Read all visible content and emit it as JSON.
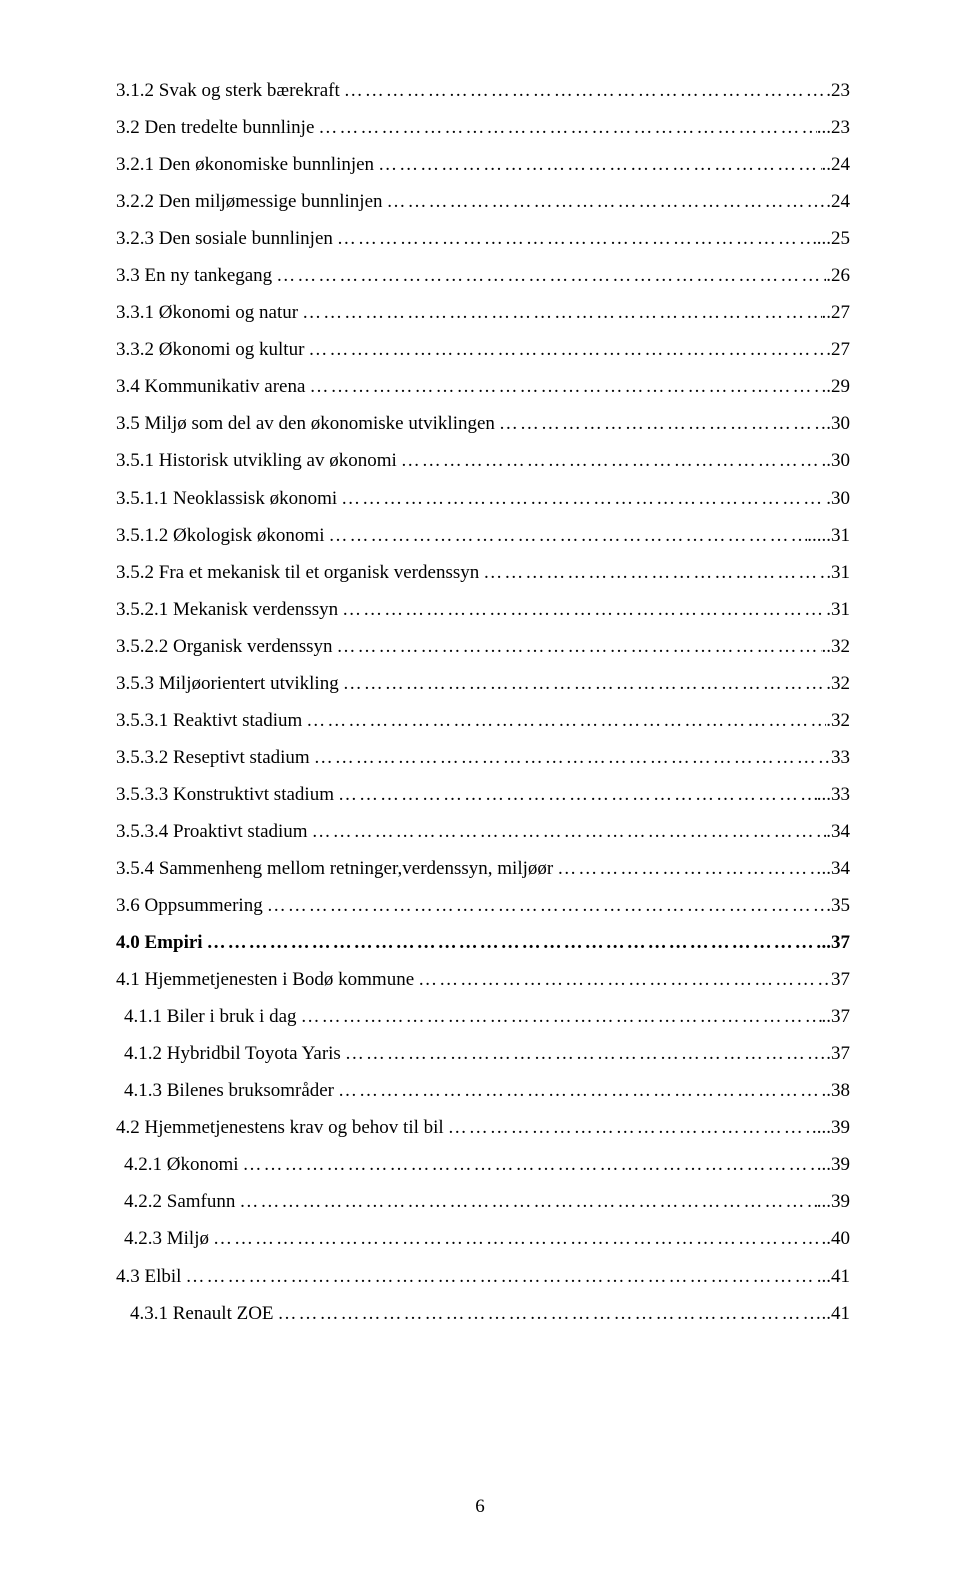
{
  "toc": [
    {
      "label": "3.1.2 Svak og sterk bærekraft",
      "page": ".23",
      "indent": 0,
      "bold": false
    },
    {
      "label": "3.2 Den tredelte bunnlinje",
      "page": "...23",
      "indent": 0,
      "bold": false
    },
    {
      "label": "3.2.1 Den økonomiske bunnlinjen",
      "page": "..24",
      "indent": 0,
      "bold": false
    },
    {
      "label": "3.2.2 Den miljømessige bunnlinjen",
      "page": ".24",
      "indent": 0,
      "bold": false
    },
    {
      "label": "3.2.3 Den sosiale bunnlinjen",
      "page": "...25",
      "indent": 0,
      "bold": false
    },
    {
      "label": "3.3 En ny tankegang",
      "page": ".26",
      "indent": 0,
      "bold": false
    },
    {
      "label": "3.3.1 Økonomi og natur",
      "page": "..27",
      "indent": 0,
      "bold": false
    },
    {
      "label": "3.3.2 Økonomi og kultur",
      "page": ".27",
      "indent": 0,
      "bold": false
    },
    {
      "label": "3.4 Kommunikativ arena",
      "page": "..29",
      "indent": 0,
      "bold": false
    },
    {
      "label": "3.5 Miljø som del av den økonomiske utviklingen",
      "page": ".30",
      "indent": 0,
      "bold": false
    },
    {
      "label": "3.5.1 Historisk utvikling av økonomi",
      "page": "..30",
      "indent": 0,
      "bold": false
    },
    {
      "label": "3.5.1.1 Neoklassisk økonomi",
      "page": ".30",
      "indent": 0,
      "bold": false
    },
    {
      "label": "3.5.1.2 Økologisk økonomi",
      "page": ".....31",
      "indent": 0,
      "bold": false
    },
    {
      "label": "3.5.2 Fra et mekanisk til et organisk verdenssyn",
      "page": "31",
      "indent": 0,
      "bold": false
    },
    {
      "label": "3.5.2.1 Mekanisk verdenssyn",
      "page": ".31",
      "indent": 0,
      "bold": false
    },
    {
      "label": "3.5.2.2 Organisk verdenssyn",
      "page": "..32",
      "indent": 0,
      "bold": false
    },
    {
      "label": "3.5.3 Miljøorientert utvikling",
      "page": ".32",
      "indent": 0,
      "bold": false
    },
    {
      "label": "3.5.3.1 Reaktivt stadium",
      "page": ".32",
      "indent": 0,
      "bold": false
    },
    {
      "label": "3.5.3.2 Reseptivt stadium",
      "page": "33",
      "indent": 0,
      "bold": false
    },
    {
      "label": "3.5.3.3 Konstruktivt stadium",
      "page": "...33",
      "indent": 0,
      "bold": false
    },
    {
      "label": "3.5.3.4 Proaktivt stadium",
      "page": ".34",
      "indent": 0,
      "bold": false
    },
    {
      "label": "3.5.4 Sammenheng mellom retninger,verdenssyn, miljøør",
      "page": "..34",
      "indent": 0,
      "bold": false
    },
    {
      "label": "3.6 Oppsummering",
      "page": ".35",
      "indent": 0,
      "bold": false
    },
    {
      "label": "4.0 Empiri",
      "page": "..37",
      "indent": 0,
      "bold": true
    },
    {
      "label": "4.1 Hjemmetjenesten i Bodø kommune",
      "page": "37",
      "indent": 0,
      "bold": false
    },
    {
      "label": "4.1.1 Biler i bruk i dag",
      "page": "..37",
      "indent": 1,
      "bold": false
    },
    {
      "label": "4.1.2 Hybridbil Toyota Yaris",
      "page": ".37",
      "indent": 1,
      "bold": false
    },
    {
      "label": "4.1.3 Bilenes bruksområder",
      "page": "..38",
      "indent": 1,
      "bold": false
    },
    {
      "label": "4.2 Hjemmetjenestens krav og behov til bil",
      "page": "...39",
      "indent": 0,
      "bold": false
    },
    {
      "label": "4.2.1 Økonomi",
      "page": "...39",
      "indent": 1,
      "bold": false
    },
    {
      "label": "4.2.2 Samfunn",
      "page": "...39",
      "indent": 1,
      "bold": false
    },
    {
      "label": "4.2.3 Miljø",
      "page": "..40",
      "indent": 1,
      "bold": false
    },
    {
      "label": "4.3 Elbil",
      "page": "...41",
      "indent": 0,
      "bold": false
    },
    {
      "label": "4.3.1 Renault ZOE",
      "page": "..41",
      "indent": 2,
      "bold": false
    }
  ],
  "page_number": "6"
}
